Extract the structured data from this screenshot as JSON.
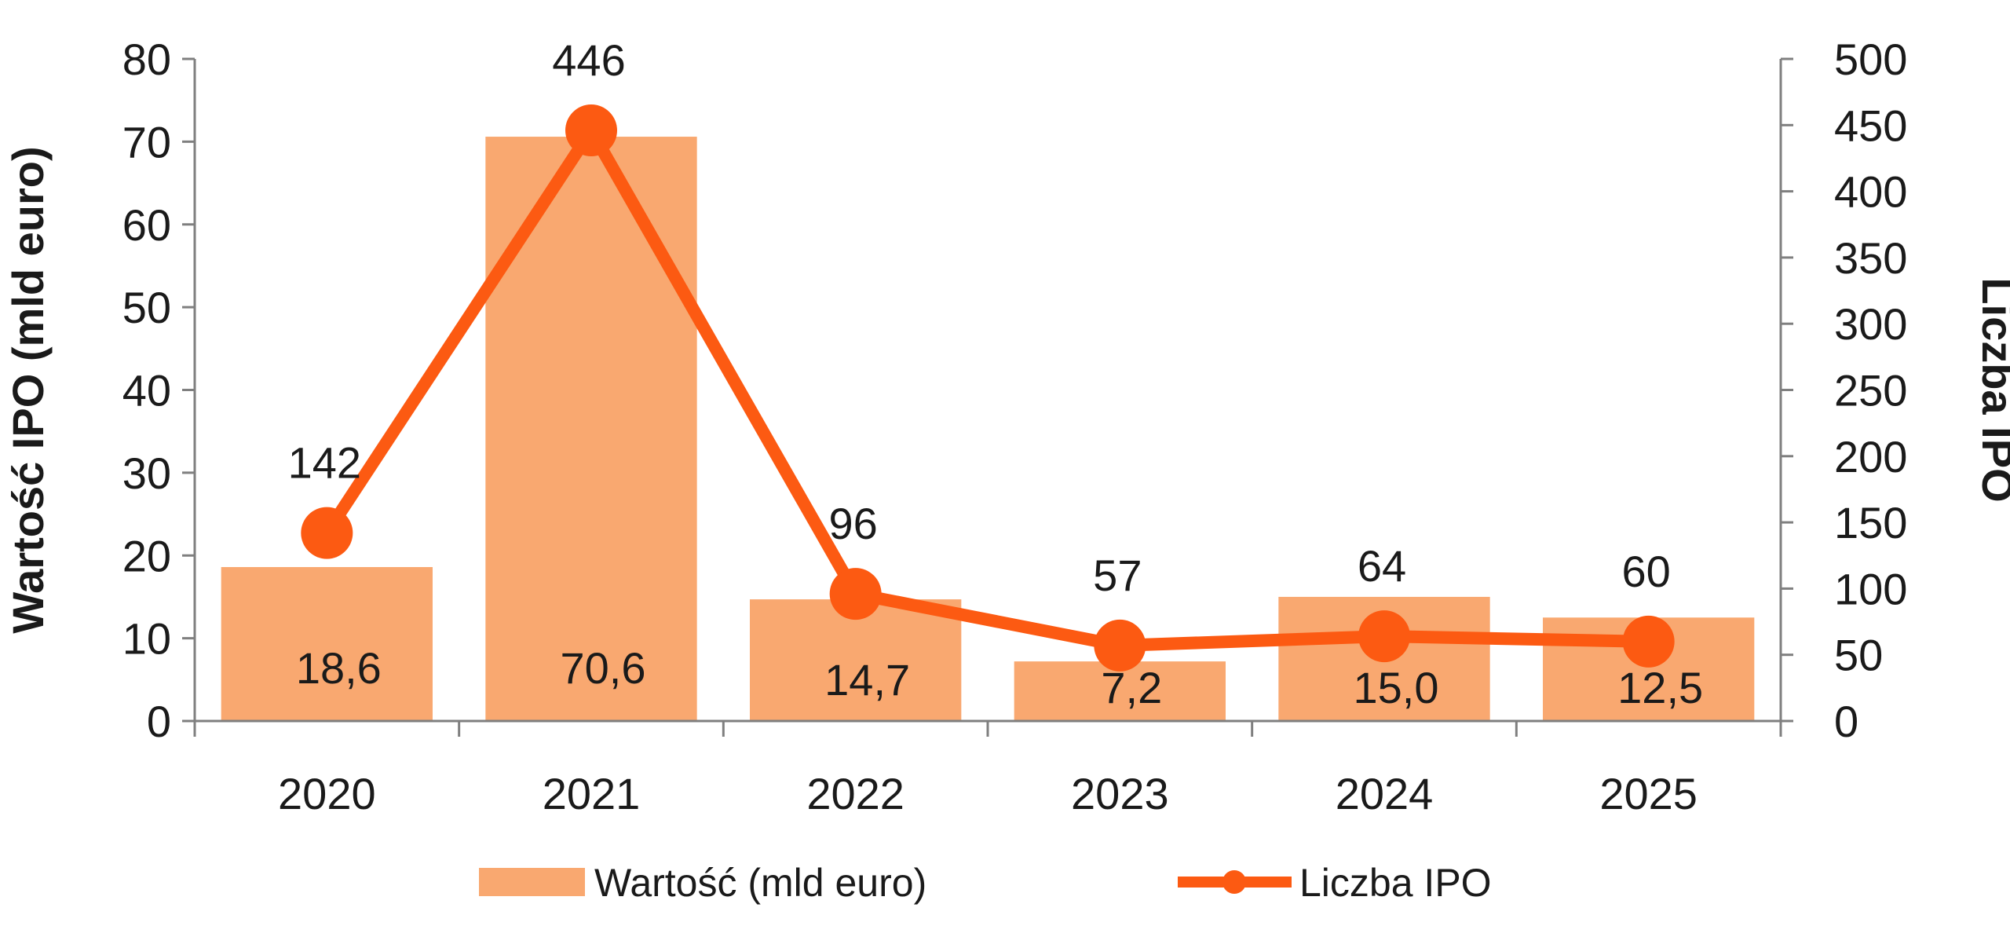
{
  "chart_data": {
    "type": "bar",
    "categories": [
      "2020",
      "2021",
      "2022",
      "2023",
      "2024",
      "2025"
    ],
    "series": [
      {
        "name": "Wartość (mld euro)",
        "type": "bar",
        "axis": "left",
        "values": [
          18.6,
          70.6,
          14.7,
          7.2,
          15.0,
          12.5
        ],
        "labels": [
          "18,6",
          "70,6",
          "14,7",
          "7,2",
          "15,0",
          "12,5"
        ],
        "color": "#f9a870"
      },
      {
        "name": "Liczba IPO",
        "type": "line",
        "axis": "right",
        "values": [
          142,
          446,
          96,
          57,
          64,
          60
        ],
        "labels": [
          "142",
          "446",
          "96",
          "57",
          "64",
          "60"
        ],
        "color": "#fc5a12"
      }
    ],
    "ylabel_left": "Wartość IPO (mld euro)",
    "ylabel_right": "Liczba IPO",
    "ylim_left": [
      0,
      80
    ],
    "ylim_right": [
      0,
      500
    ],
    "yticks_left": [
      "0",
      "10",
      "20",
      "30",
      "40",
      "50",
      "60",
      "70",
      "80"
    ],
    "yticks_right": [
      "0",
      "50",
      "100",
      "150",
      "200",
      "250",
      "300",
      "350",
      "400",
      "450",
      "500"
    ],
    "grid": false,
    "legend_position": "bottom"
  }
}
